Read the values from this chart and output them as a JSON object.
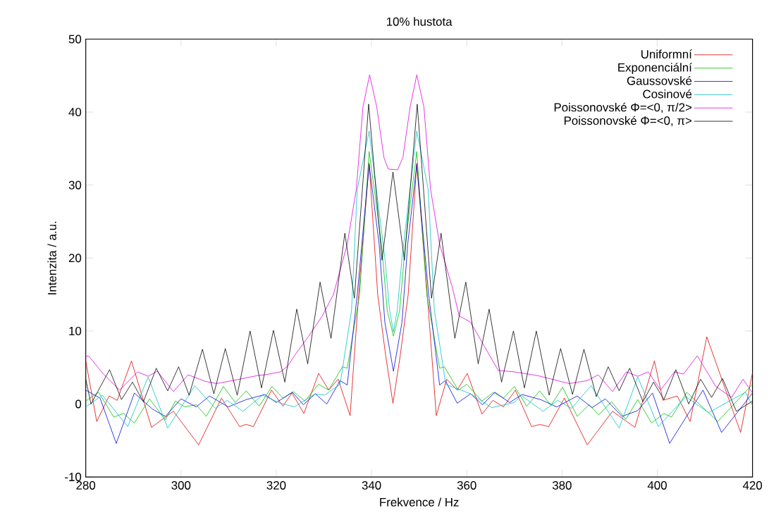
{
  "chart_data": {
    "type": "line",
    "title": "10% hustota",
    "xlabel": "Frekvence / Hz",
    "ylabel": "Intenzita / a.u.",
    "xlim": [
      280,
      420
    ],
    "ylim": [
      -10,
      50
    ],
    "xticks": [
      280,
      300,
      320,
      340,
      360,
      380,
      400,
      420
    ],
    "yticks": [
      -10,
      0,
      10,
      20,
      30,
      40,
      50
    ],
    "legend": "top right",
    "marker": "none",
    "line_style": "solid",
    "series": [
      {
        "name": "Uniformní",
        "color": "#dd0000",
        "x": [
          280,
          282.3,
          284.9,
          286.6,
          289.6,
          293.8,
          298.4,
          303.7,
          308.5,
          312.3,
          313.7,
          315.2,
          319.0,
          321.4,
          323.3,
          325.8,
          328.9,
          331.0,
          333.0,
          335.5,
          337.4,
          339.5,
          341.3,
          343.0,
          344.5,
          346.0,
          347.7,
          349.5,
          351.6,
          353.6,
          355.8,
          358.0,
          360.1,
          363.2,
          365.5,
          367.7,
          370.2,
          373.6,
          375.4,
          377.2,
          380.5,
          385.3,
          390.6,
          395.3,
          399.4,
          401.2,
          404.2,
          406.9,
          410.4,
          417.5,
          420
        ],
        "values": [
          5.9,
          -2.4,
          1.1,
          0.5,
          5.9,
          -3.2,
          -1.0,
          -5.6,
          0.8,
          -3.1,
          -2.8,
          -3.1,
          1.9,
          -0.3,
          1.5,
          -1.3,
          4.2,
          1.9,
          3.4,
          -1.6,
          15.9,
          33.0,
          15.0,
          6.5,
          0.1,
          6.5,
          15.0,
          33.0,
          15.9,
          -1.6,
          3.4,
          1.9,
          4.2,
          -1.4,
          0.5,
          -0.4,
          1.9,
          -3.1,
          -2.8,
          -3.1,
          0.8,
          -5.6,
          -1.0,
          -3.2,
          5.9,
          0.5,
          1.1,
          -2.4,
          9.2,
          -3.9,
          4.3
        ]
      },
      {
        "name": "Exponenciální",
        "color": "#00c000",
        "x": [
          280,
          282.7,
          285.9,
          287.9,
          290.2,
          293.4,
          296.7,
          298.8,
          300.8,
          303.2,
          305.3,
          308.9,
          311.4,
          313.7,
          316.4,
          319.1,
          321.4,
          323.6,
          326.0,
          328.9,
          331.0,
          333.9,
          334.9,
          337.5,
          339.5,
          342.1,
          343.3,
          344.6,
          345.9,
          347.1,
          349.5,
          351.6,
          354.3,
          355.3,
          358.2,
          360.0,
          363.2,
          365.6,
          367.7,
          370.0,
          372.6,
          375.3,
          377.7,
          380.1,
          383.2,
          385.7,
          387.7,
          390.4,
          393.4,
          395.9,
          398.8,
          401.4,
          403.0,
          406.2,
          412.7,
          420
        ],
        "values": [
          0.4,
          1.6,
          -1.8,
          -1.3,
          -2.6,
          0.7,
          -2.2,
          0.4,
          -0.4,
          -0.1,
          -1.7,
          2.4,
          0.2,
          1.8,
          -0.3,
          2.4,
          0.8,
          1.7,
          0.4,
          2.7,
          1.9,
          5.1,
          4.9,
          15.0,
          34.6,
          21.9,
          12.8,
          9.3,
          12.8,
          21.9,
          34.6,
          15.0,
          4.9,
          5.1,
          1.9,
          2.7,
          0.4,
          1.6,
          0.8,
          2.4,
          -0.3,
          1.8,
          -0.2,
          2.3,
          -1.7,
          -0.1,
          -1.5,
          0.3,
          -2.1,
          0.6,
          -2.6,
          -1.3,
          -1.8,
          1.6,
          -2.4,
          2.7
        ]
      },
      {
        "name": "Gaussovské",
        "color": "#0000dd",
        "x": [
          280,
          283.0,
          286.4,
          290.2,
          294.0,
          296.7,
          300.0,
          303.2,
          306.0,
          309.9,
          313.7,
          317.6,
          320.0,
          323.4,
          325.7,
          328.2,
          330.6,
          333.4,
          334.9,
          337.0,
          339.5,
          341.6,
          342.8,
          344.6,
          346.4,
          347.6,
          349.5,
          352.0,
          354.3,
          355.5,
          358.0,
          360.8,
          363.3,
          365.9,
          369.0,
          371.6,
          375.5,
          378.9,
          383.2,
          386.3,
          389.1,
          392.6,
          395.9,
          399.0,
          402.6,
          409.6,
          413.5,
          420
        ],
        "values": [
          1.9,
          0.8,
          -5.4,
          1.5,
          -0.7,
          -1.7,
          0.7,
          -0.4,
          1.1,
          -0.4,
          0.6,
          1.3,
          0.2,
          1.6,
          -0.1,
          1.4,
          0.0,
          3.2,
          2.6,
          15.0,
          32.8,
          21.9,
          11.2,
          4.5,
          11.2,
          21.9,
          32.8,
          15.0,
          2.6,
          3.2,
          0.1,
          1.4,
          -0.1,
          1.6,
          0.2,
          1.3,
          0.6,
          -0.4,
          1.1,
          -0.5,
          0.7,
          -1.7,
          -0.9,
          1.5,
          -5.4,
          1.9,
          -3.9,
          1.5
        ]
      },
      {
        "name": "Cosinové",
        "color": "#00c0c0",
        "x": [
          280,
          283.5,
          288.8,
          293.1,
          297.2,
          302.9,
          307.2,
          309.7,
          313.0,
          317.1,
          320.9,
          323.8,
          328.2,
          330.1,
          333.4,
          335.8,
          337.0,
          339.5,
          342.8,
          343.8,
          344.6,
          345.4,
          346.4,
          349.5,
          351.9,
          353.2,
          355.6,
          360.8,
          365.2,
          370.0,
          371.4,
          376.0,
          379.1,
          382.0,
          386.1,
          392.0,
          395.9,
          400.2,
          406.0,
          410.8,
          415.4,
          418.5,
          420
        ],
        "values": [
          -0.4,
          1.2,
          -3.1,
          3.7,
          -3.3,
          2.5,
          -0.6,
          0.5,
          -1.0,
          1.2,
          0.1,
          -0.4,
          1.4,
          1.2,
          2.7,
          12.8,
          29.4,
          37.4,
          20.0,
          12.8,
          9.9,
          12.8,
          20.0,
          37.4,
          29.4,
          12.8,
          2.7,
          1.4,
          -0.5,
          0.2,
          1.2,
          -1.0,
          0.5,
          -0.6,
          2.5,
          -3.3,
          3.7,
          -3.1,
          1.0,
          -1.2,
          0.5,
          1.6,
          -0.2
        ]
      },
      {
        "name": "Poissonovské Φ=<0, π/2>",
        "color": "#dd00dd",
        "x": [
          280,
          280.6,
          283.7,
          287.1,
          290.9,
          293.1,
          295.0,
          298.4,
          301.5,
          305.1,
          307.5,
          312.3,
          316.1,
          317.6,
          320.9,
          322.4,
          323.8,
          326.7,
          329.6,
          332.0,
          334.9,
          336.8,
          338.2,
          339.6,
          341.1,
          342.6,
          343.5,
          345.5,
          346.6,
          348.1,
          349.5,
          351.0,
          352.4,
          354.3,
          357.0,
          358.4,
          360.8,
          366.6,
          370.0,
          374.8,
          381.5,
          385.3,
          387.6,
          390.6,
          393.5,
          395.9,
          398.1,
          400.7,
          403.6,
          405.5,
          408.4,
          412.3,
          415.6,
          418.0,
          420
        ],
        "values": [
          6.5,
          6.6,
          4.1,
          1.9,
          4.4,
          3.8,
          4.5,
          1.7,
          4.0,
          3.1,
          2.8,
          3.4,
          3.9,
          4.0,
          4.4,
          5.2,
          6.6,
          9.2,
          12.0,
          15.0,
          21.9,
          29.4,
          40.7,
          45.1,
          40.7,
          33.8,
          32.2,
          32.1,
          33.8,
          40.7,
          45.1,
          40.7,
          29.4,
          21.9,
          15.9,
          12.1,
          11.2,
          4.6,
          4.4,
          3.9,
          2.8,
          3.2,
          4.0,
          1.7,
          4.4,
          3.8,
          4.4,
          1.9,
          4.4,
          4.1,
          6.6,
          2.4,
          0.9,
          3.4,
          1.5
        ]
      },
      {
        "name": "Poissonovské Φ=<0, π>",
        "color": "#000000",
        "x": [
          280,
          281.1,
          285.0,
          287.5,
          289.8,
          292.1,
          294.8,
          297.2,
          299.5,
          301.7,
          304.5,
          306.9,
          309.3,
          311.8,
          314.5,
          316.9,
          319.4,
          321.8,
          324.3,
          326.6,
          329.2,
          331.5,
          334.4,
          336.4,
          339.4,
          342.2,
          344.5,
          346.9,
          349.6,
          352.6,
          354.6,
          357.5,
          359.8,
          362.4,
          364.7,
          367.3,
          369.8,
          372.1,
          374.6,
          377.3,
          379.7,
          382.2,
          384.6,
          387.2,
          389.7,
          392.0,
          394.2,
          397.0,
          399.2,
          401.4,
          403.9,
          406.6,
          409.1,
          411.4,
          413.7,
          416.6,
          420
        ],
        "values": [
          3.4,
          0.0,
          4.7,
          0.6,
          3.0,
          0.3,
          4.9,
          1.8,
          5.1,
          1.2,
          7.5,
          1.4,
          7.6,
          1.2,
          10.0,
          2.2,
          10.1,
          3.0,
          13.0,
          5.5,
          16.7,
          9.0,
          23.4,
          14.5,
          41.1,
          19.7,
          31.8,
          19.7,
          41.1,
          14.5,
          23.4,
          9.0,
          16.7,
          5.5,
          13.0,
          3.0,
          10.0,
          2.2,
          10.0,
          1.2,
          7.6,
          1.3,
          7.5,
          1.0,
          5.1,
          1.8,
          4.9,
          0.3,
          3.0,
          0.6,
          4.7,
          0.0,
          3.4,
          0.9,
          3.5,
          -1.0,
          0.4
        ]
      }
    ]
  }
}
